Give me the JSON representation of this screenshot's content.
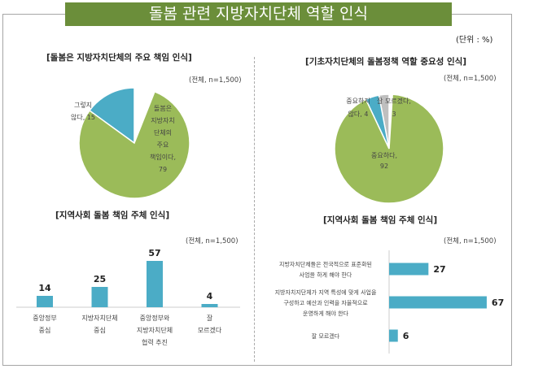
{
  "title": "돌봄 관련 지방자치단체 역할 인식",
  "unit": "(단위 : %)",
  "colors": {
    "green": "#9bbb59",
    "blue": "#4bacc6",
    "gray": "#bfbfbf",
    "banner": "#6b8e3a"
  },
  "chart_data": [
    {
      "type": "pie",
      "title": "[돌봄은 지방자치단체의 주요 책임 인식]",
      "note": "(전체, n=1,500)",
      "slices": [
        {
          "label": "그렇지 않다, 15",
          "value": 15,
          "color": "#4bacc6"
        },
        {
          "label": "돌봄은 지방자치 단체의 주요 책임이다, 79",
          "value": 79,
          "color": "#9bbb59"
        }
      ]
    },
    {
      "type": "pie",
      "title": "[기초자치단체의 돌봄정책 역할 중요성 인식]",
      "note": "(전체, n=1,500)",
      "slices": [
        {
          "label": "잘 모르겠다, 3",
          "value": 3,
          "color": "#bfbfbf"
        },
        {
          "label": "중요하지 않다, 4",
          "value": 4,
          "color": "#4bacc6"
        },
        {
          "label": "중요하다, 92",
          "value": 92,
          "color": "#9bbb59"
        }
      ]
    },
    {
      "type": "bar",
      "title": "[지역사회 돌봄 책임 주체 인식]",
      "note": "(전체, n=1,500)",
      "categories": [
        "중앙정부 중심",
        "지방자치단체 중심",
        "중앙정부와 지방자치단체 협력 추진",
        "잘 모르겠다"
      ],
      "category_lines": [
        [
          "중앙정부",
          "중심"
        ],
        [
          "지방자치단체",
          "중심"
        ],
        [
          "중앙정부와",
          "지방자치단체",
          "협력 추진"
        ],
        [
          "잘",
          "모르겠다"
        ]
      ],
      "values": [
        14,
        25,
        57,
        4
      ]
    },
    {
      "type": "bar",
      "orientation": "horizontal",
      "title": "[지역사회 돌봄 책임 주체 인식]",
      "note": "(전체, n=1,500)",
      "categories": [
        "지방자치단체들은 전국적으로 표준화된 사업을 하게 해야 한다",
        "지방자치지단체가 지역 특성에 맞게 사업을 구성하고 예산과 인력을 자율적으로 운영하게 해야 한다",
        "잘 모르겠다"
      ],
      "category_lines": [
        [
          "지방자치단체들은 전국적으로 표준화된",
          "사업을 하게 해야 한다"
        ],
        [
          "지방자치지단체가 지역 특성에 맞게 사업을",
          "구성하고 예산과 인력을 자율적으로",
          "운영하게 해야 한다"
        ],
        [
          "잘 모르겠다"
        ]
      ],
      "values": [
        27,
        67,
        6
      ]
    }
  ]
}
